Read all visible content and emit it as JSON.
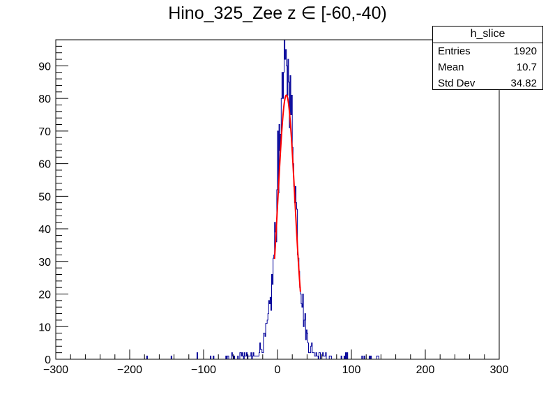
{
  "chart_data": {
    "type": "histogram",
    "title": "Hino_325_Zee z  ∈ [-60,-40)",
    "xlabel": "",
    "ylabel": "",
    "xlim": [
      -300,
      300
    ],
    "ylim": [
      0,
      98
    ],
    "x_ticks": [
      -300,
      -200,
      -100,
      0,
      100,
      200,
      300
    ],
    "y_ticks": [
      0,
      10,
      20,
      30,
      40,
      50,
      60,
      70,
      80,
      90
    ],
    "bin_width": 1,
    "colors": {
      "histogram": "#000099",
      "fit": "#ff0000",
      "axis": "#000000"
    },
    "stats_box": {
      "name": "h_slice",
      "rows": [
        {
          "label": "Entries",
          "value": "1920"
        },
        {
          "label": "Mean",
          "value": "10.7"
        },
        {
          "label": "Std Dev",
          "value": "34.82"
        }
      ]
    },
    "peak": {
      "x": [
        0,
        5,
        8,
        10,
        12,
        15,
        18,
        20
      ],
      "y": [
        70,
        80,
        88,
        92,
        90,
        85,
        75,
        65
      ]
    },
    "fit": {
      "function": "gaus",
      "constant": 81,
      "mean": 12,
      "sigma": 11.5,
      "range": [
        -4,
        31
      ]
    }
  }
}
